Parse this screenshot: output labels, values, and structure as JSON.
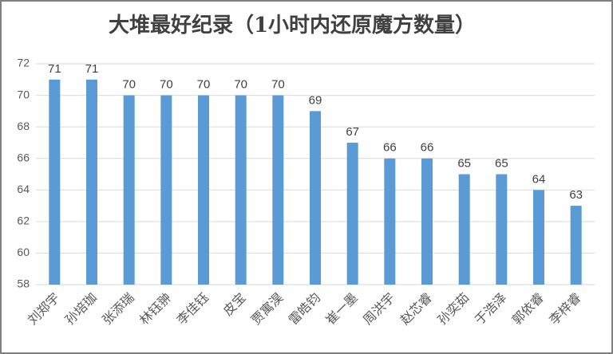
{
  "chart_data": {
    "type": "bar",
    "title": "大堆最好纪录（1小时内还原魔方数量）",
    "categories": [
      "刘郑宇",
      "孙培珈",
      "张添瑞",
      "林钰翀",
      "李佳钰",
      "皮宝",
      "贾寓淏",
      "雷皓钧",
      "崔一墨",
      "周洪宇",
      "赵芯睿",
      "孙奕茹",
      "于浩泽",
      "郭依睿",
      "李梓睿"
    ],
    "values": [
      71,
      71,
      70,
      70,
      70,
      70,
      70,
      69,
      67,
      66,
      66,
      65,
      65,
      64,
      63
    ],
    "color": "#5b9bd5",
    "ylim": [
      58,
      72
    ],
    "yticks": [
      58,
      60,
      62,
      64,
      66,
      68,
      70,
      72
    ],
    "grid": true
  }
}
